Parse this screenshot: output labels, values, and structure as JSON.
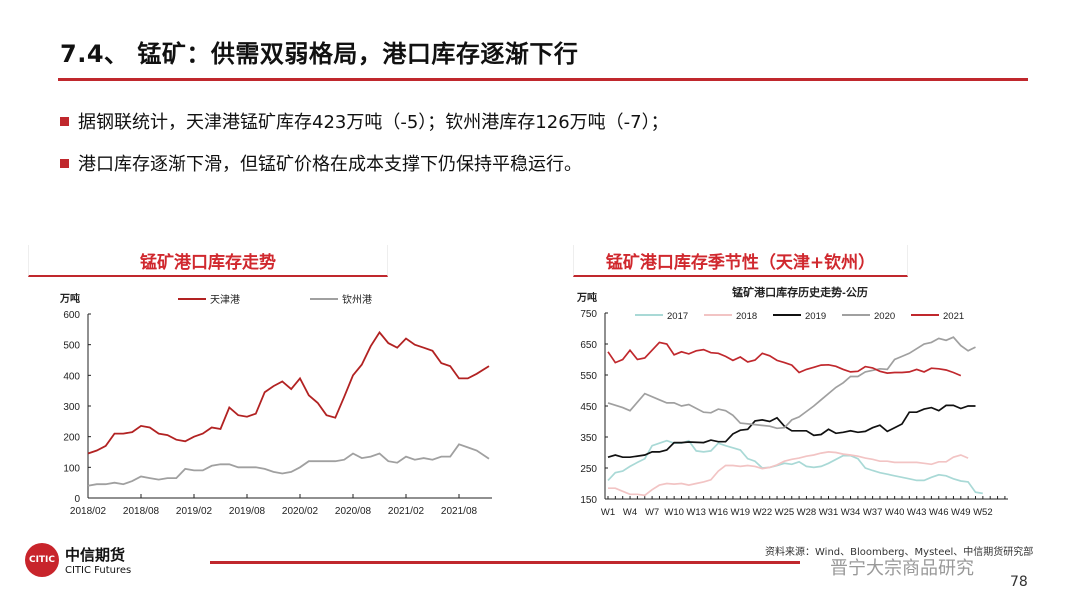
{
  "title": "7.4、 锰矿：供需双弱格局，港口库存逐渐下行",
  "bullets": [
    "据钢联统计，天津港锰矿库存423万吨（-5）；钦州港库存126万吨（-7）；",
    "港口库存逐渐下滑，但锰矿价格在成本支撑下仍保持平稳运行。"
  ],
  "colors": {
    "accent": "#c0282d"
  },
  "chart_data": [
    {
      "type": "line",
      "header": "锰矿港口库存走势",
      "ylabel": "万吨",
      "ylim": [
        0,
        600
      ],
      "yticks": [
        0,
        100,
        200,
        300,
        400,
        500,
        600
      ],
      "xticks": [
        "2018/02",
        "2018/08",
        "2019/02",
        "2019/08",
        "2020/02",
        "2020/08",
        "2021/02",
        "2021/08"
      ],
      "x_start": "2018-02",
      "legend": "top",
      "series": [
        {
          "name": "天津港",
          "color": "#b22222",
          "values": [
            145,
            155,
            170,
            210,
            210,
            215,
            235,
            230,
            210,
            205,
            190,
            185,
            200,
            210,
            230,
            225,
            295,
            270,
            265,
            275,
            345,
            365,
            380,
            355,
            390,
            335,
            310,
            270,
            262,
            330,
            400,
            435,
            495,
            540,
            505,
            490,
            520,
            500,
            490,
            480,
            440,
            430,
            390,
            390,
            405,
            430
          ]
        },
        {
          "name": "钦州港",
          "color": "#a0a0a0",
          "values": [
            40,
            45,
            45,
            50,
            45,
            55,
            70,
            65,
            60,
            65,
            65,
            95,
            90,
            90,
            105,
            110,
            110,
            100,
            100,
            100,
            95,
            85,
            80,
            85,
            100,
            120,
            120,
            120,
            120,
            125,
            145,
            130,
            135,
            145,
            120,
            115,
            135,
            125,
            130,
            125,
            135,
            135,
            175,
            165,
            155,
            128
          ]
        }
      ]
    },
    {
      "type": "line",
      "header": "锰矿港口库存季节性（天津+钦州）",
      "title": "锰矿港口库存历史走势-公历",
      "ylabel": "万吨",
      "ylim": [
        150,
        750
      ],
      "yticks": [
        150,
        250,
        350,
        450,
        550,
        650,
        750
      ],
      "xticks": [
        "W1",
        "W4",
        "W7",
        "W10",
        "W13",
        "W16",
        "W19",
        "W22",
        "W25",
        "W28",
        "W31",
        "W34",
        "W37",
        "W40",
        "W43",
        "W46",
        "W49",
        "W52"
      ],
      "legend": "top",
      "series": [
        {
          "name": "2017",
          "color": "#a9d9d6",
          "points": [
            [
              1,
              210
            ],
            [
              2,
              235
            ],
            [
              3,
              240
            ],
            [
              4,
              255
            ],
            [
              5,
              268
            ],
            [
              6,
              280
            ],
            [
              7,
              322
            ],
            [
              8,
              330
            ],
            [
              9,
              338
            ],
            [
              10,
              330
            ],
            [
              11,
              330
            ],
            [
              12,
              338
            ],
            [
              13,
              305
            ],
            [
              14,
              302
            ],
            [
              15,
              305
            ],
            [
              16,
              330
            ],
            [
              17,
              322
            ],
            [
              18,
              315
            ],
            [
              19,
              308
            ],
            [
              20,
              280
            ],
            [
              21,
              272
            ],
            [
              22,
              250
            ],
            [
              23,
              252
            ],
            [
              24,
              258
            ],
            [
              25,
              265
            ],
            [
              26,
              262
            ],
            [
              27,
              270
            ],
            [
              28,
              255
            ],
            [
              29,
              252
            ],
            [
              30,
              255
            ],
            [
              31,
              265
            ],
            [
              33,
              290
            ],
            [
              34,
              290
            ],
            [
              35,
              280
            ],
            [
              36,
              250
            ],
            [
              37,
              242
            ],
            [
              38,
              235
            ],
            [
              39,
              230
            ],
            [
              40,
              225
            ],
            [
              41,
              220
            ],
            [
              42,
              215
            ],
            [
              43,
              210
            ],
            [
              44,
              210
            ],
            [
              45,
              220
            ],
            [
              46,
              228
            ],
            [
              47,
              225
            ],
            [
              48,
              215
            ],
            [
              49,
              208
            ],
            [
              50,
              205
            ],
            [
              51,
              172
            ],
            [
              52,
              168
            ]
          ]
        },
        {
          "name": "2018",
          "color": "#f2c4c4",
          "points": [
            [
              1,
              185
            ],
            [
              2,
              185
            ],
            [
              3,
              175
            ],
            [
              4,
              165
            ],
            [
              5,
              165
            ],
            [
              6,
              162
            ],
            [
              7,
              180
            ],
            [
              8,
              195
            ],
            [
              9,
              200
            ],
            [
              10,
              198
            ],
            [
              11,
              200
            ],
            [
              12,
              195
            ],
            [
              13,
              200
            ],
            [
              14,
              205
            ],
            [
              15,
              212
            ],
            [
              16,
              240
            ],
            [
              17,
              258
            ],
            [
              18,
              258
            ],
            [
              19,
              255
            ],
            [
              20,
              258
            ],
            [
              21,
              255
            ],
            [
              22,
              248
            ],
            [
              23,
              252
            ],
            [
              24,
              260
            ],
            [
              25,
              272
            ],
            [
              26,
              278
            ],
            [
              27,
              282
            ],
            [
              28,
              288
            ],
            [
              29,
              292
            ],
            [
              30,
              298
            ],
            [
              31,
              302
            ],
            [
              32,
              300
            ],
            [
              33,
              295
            ],
            [
              34,
              292
            ],
            [
              35,
              288
            ],
            [
              36,
              282
            ],
            [
              37,
              278
            ],
            [
              38,
              272
            ],
            [
              39,
              272
            ],
            [
              40,
              268
            ],
            [
              41,
              268
            ],
            [
              42,
              268
            ],
            [
              43,
              268
            ],
            [
              44,
              265
            ],
            [
              45,
              262
            ],
            [
              46,
              270
            ],
            [
              47,
              270
            ],
            [
              48,
              285
            ],
            [
              49,
              292
            ],
            [
              50,
              282
            ]
          ]
        },
        {
          "name": "2019",
          "color": "#111111",
          "points": [
            [
              1,
              285
            ],
            [
              2,
              292
            ],
            [
              3,
              285
            ],
            [
              4,
              285
            ],
            [
              6,
              292
            ],
            [
              7,
              302
            ],
            [
              8,
              302
            ],
            [
              9,
              308
            ],
            [
              10,
              332
            ],
            [
              11,
              332
            ],
            [
              12,
              334
            ],
            [
              14,
              332
            ],
            [
              15,
              340
            ],
            [
              16,
              335
            ],
            [
              17,
              335
            ],
            [
              18,
              360
            ],
            [
              19,
              372
            ],
            [
              20,
              375
            ],
            [
              21,
              402
            ],
            [
              22,
              405
            ],
            [
              23,
              400
            ],
            [
              24,
              412
            ],
            [
              25,
              385
            ],
            [
              26,
              370
            ],
            [
              28,
              370
            ],
            [
              29,
              355
            ],
            [
              30,
              358
            ],
            [
              31,
              375
            ],
            [
              32,
              362
            ],
            [
              33,
              365
            ],
            [
              34,
              370
            ],
            [
              35,
              365
            ],
            [
              36,
              368
            ],
            [
              37,
              380
            ],
            [
              38,
              388
            ],
            [
              39,
              368
            ],
            [
              40,
              380
            ],
            [
              41,
              392
            ],
            [
              42,
              430
            ],
            [
              43,
              430
            ],
            [
              44,
              440
            ],
            [
              45,
              445
            ],
            [
              46,
              435
            ],
            [
              47,
              452
            ],
            [
              48,
              452
            ],
            [
              49,
              442
            ],
            [
              50,
              450
            ],
            [
              51,
              450
            ]
          ]
        },
        {
          "name": "2020",
          "color": "#a0a0a0",
          "points": [
            [
              1,
              460
            ],
            [
              3,
              445
            ],
            [
              4,
              435
            ],
            [
              6,
              490
            ],
            [
              8,
              470
            ],
            [
              9,
              460
            ],
            [
              10,
              460
            ],
            [
              11,
              450
            ],
            [
              12,
              455
            ],
            [
              14,
              430
            ],
            [
              15,
              428
            ],
            [
              16,
              440
            ],
            [
              17,
              435
            ],
            [
              18,
              420
            ],
            [
              19,
              395
            ],
            [
              21,
              390
            ],
            [
              23,
              385
            ],
            [
              24,
              378
            ],
            [
              25,
              380
            ],
            [
              26,
              405
            ],
            [
              27,
              415
            ],
            [
              29,
              450
            ],
            [
              30,
              470
            ],
            [
              32,
              510
            ],
            [
              33,
              525
            ],
            [
              34,
              545
            ],
            [
              35,
              545
            ],
            [
              36,
              560
            ],
            [
              38,
              570
            ],
            [
              39,
              568
            ],
            [
              40,
              600
            ],
            [
              41,
              610
            ],
            [
              42,
              620
            ],
            [
              44,
              650
            ],
            [
              45,
              655
            ],
            [
              46,
              668
            ],
            [
              47,
              662
            ],
            [
              48,
              672
            ],
            [
              49,
              645
            ],
            [
              50,
              628
            ],
            [
              51,
              640
            ]
          ]
        },
        {
          "name": "2021",
          "color": "#c0282d",
          "points": [
            [
              1,
              625
            ],
            [
              2,
              590
            ],
            [
              3,
              600
            ],
            [
              4,
              630
            ],
            [
              5,
              600
            ],
            [
              6,
              605
            ],
            [
              7,
              630
            ],
            [
              8,
              655
            ],
            [
              9,
              650
            ],
            [
              10,
              615
            ],
            [
              11,
              625
            ],
            [
              12,
              618
            ],
            [
              13,
              628
            ],
            [
              14,
              632
            ],
            [
              15,
              622
            ],
            [
              16,
              620
            ],
            [
              17,
              610
            ],
            [
              18,
              597
            ],
            [
              19,
              608
            ],
            [
              20,
              592
            ],
            [
              21,
              598
            ],
            [
              22,
              620
            ],
            [
              23,
              612
            ],
            [
              24,
              597
            ],
            [
              25,
              590
            ],
            [
              26,
              582
            ],
            [
              27,
              558
            ],
            [
              28,
              568
            ],
            [
              29,
              575
            ],
            [
              30,
              582
            ],
            [
              31,
              583
            ],
            [
              32,
              578
            ],
            [
              33,
              568
            ],
            [
              34,
              560
            ],
            [
              35,
              562
            ],
            [
              36,
              577
            ],
            [
              37,
              573
            ],
            [
              38,
              562
            ],
            [
              39,
              556
            ],
            [
              40,
              558
            ],
            [
              41,
              558
            ],
            [
              42,
              560
            ],
            [
              43,
              568
            ],
            [
              44,
              560
            ],
            [
              45,
              572
            ],
            [
              46,
              570
            ],
            [
              47,
              566
            ],
            [
              48,
              558
            ],
            [
              49,
              548
            ]
          ]
        }
      ]
    }
  ],
  "footer": {
    "logo_cn": "中信期货",
    "logo_en": "CITIC Futures",
    "source": "资料来源：Wind、Bloomberg、Mysteel、中信期货研究部",
    "watermark": "晋宁大宗商品研究",
    "page": "78"
  }
}
